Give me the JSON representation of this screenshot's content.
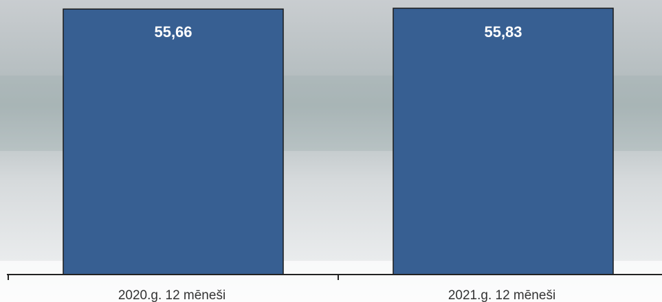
{
  "chart_data": {
    "type": "bar",
    "categories": [
      "2020.g. 12 mēneši",
      "2021.g. 12 mēneši"
    ],
    "values": [
      55.66,
      55.83
    ],
    "value_labels": [
      "55,66",
      "55,83"
    ],
    "color": "#375f92"
  }
}
